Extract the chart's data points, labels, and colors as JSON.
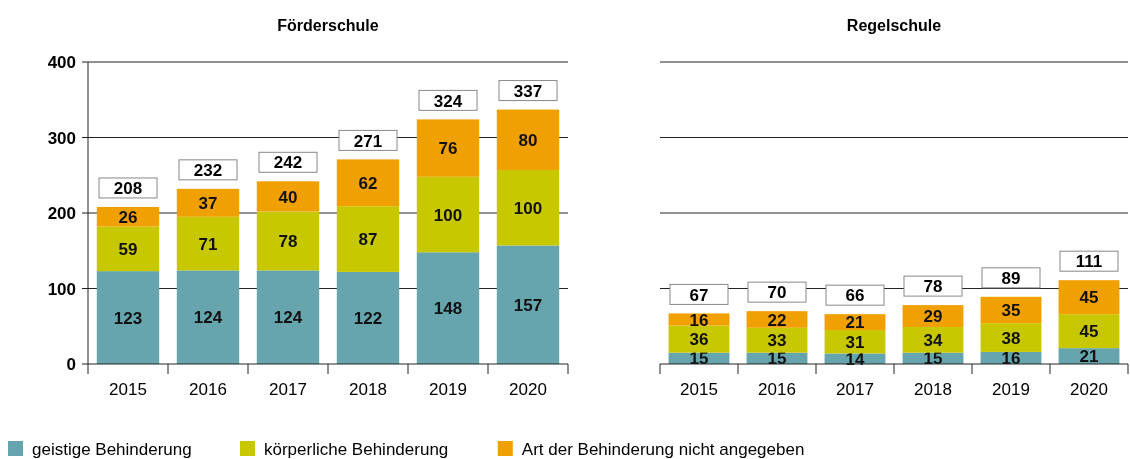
{
  "chart_data": [
    {
      "type": "bar",
      "title": "Förderschule",
      "categories": [
        "2015",
        "2016",
        "2017",
        "2018",
        "2019",
        "2020"
      ],
      "stacked": true,
      "data_labels": true,
      "ylim": [
        0,
        400
      ],
      "yticks": [
        0,
        100,
        200,
        300,
        400
      ],
      "grid": "y",
      "legend": "bottom",
      "totals": [
        "208",
        "232",
        "242",
        "271",
        "324",
        "337"
      ],
      "series": [
        {
          "name": "geistige Behinderung",
          "color": "#66a5ad",
          "values": [
            123,
            124,
            124,
            122,
            148,
            157
          ]
        },
        {
          "name": "körperliche Behinderung",
          "color": "#c8c800",
          "values": [
            59,
            71,
            78,
            87,
            100,
            100
          ]
        },
        {
          "name": "Art der Behinderung nicht angegeben",
          "color": "#f0a000",
          "values": [
            26,
            37,
            40,
            62,
            76,
            80
          ]
        }
      ]
    },
    {
      "type": "bar",
      "title": "Regelschule",
      "categories": [
        "2015",
        "2016",
        "2017",
        "2018",
        "2019",
        "2020"
      ],
      "stacked": true,
      "data_labels": true,
      "ylim": [
        0,
        400
      ],
      "yticks": [
        0,
        100,
        200,
        300,
        400
      ],
      "grid": "y",
      "tick_labels": "x",
      "totals": [
        "67",
        "70",
        "66",
        "78",
        "89",
        "111"
      ],
      "series": [
        {
          "color": "#66a5ad",
          "values": [
            15,
            15,
            14,
            15,
            16,
            21
          ]
        },
        {
          "color": "#c8c800",
          "values": [
            36,
            33,
            31,
            34,
            38,
            45
          ]
        },
        {
          "color": "#f0a000",
          "values": [
            16,
            22,
            21,
            29,
            35,
            45
          ]
        }
      ]
    }
  ]
}
